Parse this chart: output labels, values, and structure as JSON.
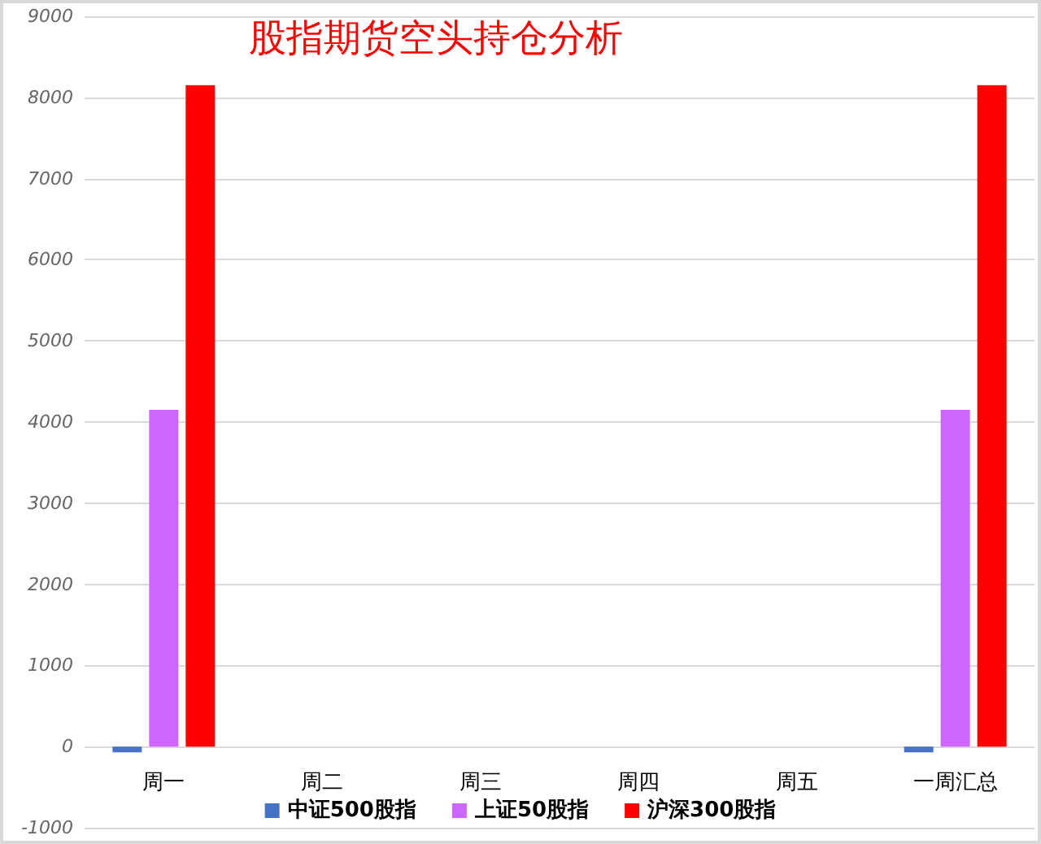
{
  "chart_data": {
    "type": "bar",
    "title": "股指期货空头持仓分析",
    "categories": [
      "周一",
      "周二",
      "周三",
      "周四",
      "周五",
      "一周汇总"
    ],
    "series": [
      {
        "name": "中证500股指",
        "color": "#4472c4",
        "values": [
          -70,
          null,
          null,
          null,
          null,
          -70
        ]
      },
      {
        "name": "上证50股指",
        "color": "#cc66ff",
        "values": [
          4150,
          null,
          null,
          null,
          null,
          4150
        ]
      },
      {
        "name": "沪深300股指",
        "color": "#ff0000",
        "values": [
          8150,
          null,
          null,
          null,
          null,
          8150
        ]
      }
    ],
    "ylim": [
      -1000,
      9000
    ],
    "yticks": [
      -1000,
      0,
      1000,
      2000,
      3000,
      4000,
      5000,
      6000,
      7000,
      8000,
      9000
    ],
    "grid": "y",
    "legend": "bottom"
  }
}
